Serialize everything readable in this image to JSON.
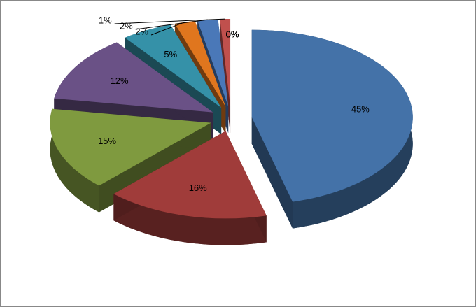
{
  "chart_data": {
    "type": "pie",
    "categories": [
      "45%",
      "16%",
      "15%",
      "12%",
      "5%",
      "2%",
      "2%",
      "1%",
      "0%",
      "0%",
      "0%",
      "0%"
    ],
    "values": [
      45,
      16,
      15,
      12,
      5,
      2,
      2,
      1,
      0,
      0,
      0,
      0
    ],
    "colors": [
      "#4472a8",
      "#a03c3a",
      "#7f9a3f",
      "#6a5186",
      "#3591a8",
      "#e0761e",
      "#4a78b8",
      "#c0504d",
      "#9bbb59",
      "#8064a2",
      "#4bacc6",
      "#f79646"
    ]
  }
}
